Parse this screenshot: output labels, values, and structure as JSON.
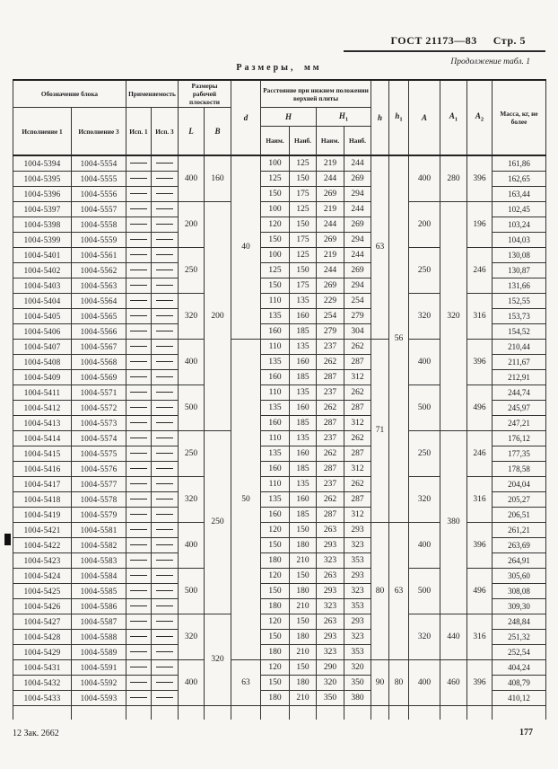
{
  "page": {
    "paper_color": "#f7f6f3",
    "ink_color": "#1d1d1d",
    "gost_label": "ГОСТ 21173—83",
    "page_label": "Стр. 5",
    "continuation": "Продолжение табл. 1",
    "size_title": "Размеры, мм",
    "footer_left": "12 Зак. 2662",
    "footer_page": "177"
  },
  "table": {
    "headers": {
      "designation_group": "Обозначение блока",
      "execution1": "Исполнение 1",
      "execution3": "Исполнение 3",
      "applicability_group": "Применяе­мость",
      "app1": "Исп. 1",
      "app3": "Исп. 3",
      "work_surface_group": "Размеры рабочей плоскости",
      "L": "L",
      "B": "B",
      "d": "d",
      "distance_group": "Расстояние при нижнем положении верхней плиты",
      "H": "H",
      "H1": {
        "base": "H",
        "sub": "1"
      },
      "min1": "Наим.",
      "max1": "Наиб.",
      "min2": "Наим.",
      "max2": "Наиб.",
      "h": "h",
      "h1": {
        "base": "h",
        "sub": "1"
      },
      "A": "A",
      "A1": {
        "base": "A",
        "sub": "1"
      },
      "A2": {
        "base": "A",
        "sub": "2"
      },
      "mass": "Масса, кг, не более"
    },
    "rows": [
      [
        "1004-5394",
        "1004-5554",
        "100",
        "125",
        "219",
        "244",
        "161,86"
      ],
      [
        "1004-5395",
        "1004-5555",
        "125",
        "150",
        "244",
        "269",
        "162,65"
      ],
      [
        "1004-5396",
        "1004-5556",
        "150",
        "175",
        "269",
        "294",
        "163,44"
      ],
      [
        "1004-5397",
        "1004-5557",
        "100",
        "125",
        "219",
        "244",
        "102,45"
      ],
      [
        "1004-5398",
        "1004-5558",
        "120",
        "150",
        "244",
        "269",
        "103,24"
      ],
      [
        "1004-5399",
        "1004-5559",
        "150",
        "175",
        "269",
        "294",
        "104,03"
      ],
      [
        "1004-5401",
        "1004-5561",
        "100",
        "125",
        "219",
        "244",
        "130,08"
      ],
      [
        "1004-5402",
        "1004-5562",
        "125",
        "150",
        "244",
        "269",
        "130,87"
      ],
      [
        "1004-5403",
        "1004-5563",
        "150",
        "175",
        "269",
        "294",
        "131,66"
      ],
      [
        "1004-5404",
        "1004-5564",
        "110",
        "135",
        "229",
        "254",
        "152,55"
      ],
      [
        "1004-5405",
        "1004-5565",
        "135",
        "160",
        "254",
        "279",
        "153,73"
      ],
      [
        "1004-5406",
        "1004-5566",
        "160",
        "185",
        "279",
        "304",
        "154,52"
      ],
      [
        "1004-5407",
        "1004-5567",
        "110",
        "135",
        "237",
        "262",
        "210,44"
      ],
      [
        "1004-5408",
        "1004-5568",
        "135",
        "160",
        "262",
        "287",
        "211,67"
      ],
      [
        "1004-5409",
        "1004-5569",
        "160",
        "185",
        "287",
        "312",
        "212,91"
      ],
      [
        "1004-5411",
        "1004-5571",
        "110",
        "135",
        "237",
        "262",
        "244,74"
      ],
      [
        "1004-5412",
        "1004-5572",
        "135",
        "160",
        "262",
        "287",
        "245,97"
      ],
      [
        "1004-5413",
        "1004-5573",
        "160",
        "185",
        "287",
        "312",
        "247,21"
      ],
      [
        "1004-5414",
        "1004-5574",
        "110",
        "135",
        "237",
        "262",
        "176,12"
      ],
      [
        "1004-5415",
        "1004-5575",
        "135",
        "160",
        "262",
        "287",
        "177,35"
      ],
      [
        "1004-5416",
        "1004-5576",
        "160",
        "185",
        "287",
        "312",
        "178,58"
      ],
      [
        "1004-5417",
        "1004-5577",
        "110",
        "135",
        "237",
        "262",
        "204,04"
      ],
      [
        "1004-5418",
        "1004-5578",
        "135",
        "160",
        "262",
        "287",
        "205,27"
      ],
      [
        "1004-5419",
        "1004-5579",
        "160",
        "185",
        "287",
        "312",
        "206,51"
      ],
      [
        "1004-5421",
        "1004-5581",
        "120",
        "150",
        "263",
        "293",
        "261,21"
      ],
      [
        "1004-5422",
        "1004-5582",
        "150",
        "180",
        "293",
        "323",
        "263,69"
      ],
      [
        "1004-5423",
        "1004-5583",
        "180",
        "210",
        "323",
        "353",
        "264,91"
      ],
      [
        "1004-5424",
        "1004-5584",
        "120",
        "150",
        "263",
        "293",
        "305,60"
      ],
      [
        "1004-5425",
        "1004-5585",
        "150",
        "180",
        "293",
        "323",
        "308,08"
      ],
      [
        "1004-5426",
        "1004-5586",
        "180",
        "210",
        "323",
        "353",
        "309,30"
      ],
      [
        "1004-5427",
        "1004-5587",
        "120",
        "150",
        "263",
        "293",
        "248,84"
      ],
      [
        "1004-5428",
        "1004-5588",
        "150",
        "180",
        "293",
        "323",
        "251,32"
      ],
      [
        "1004-5429",
        "1004-5589",
        "180",
        "210",
        "323",
        "353",
        "252,54"
      ],
      [
        "1004-5431",
        "1004-5591",
        "120",
        "150",
        "290",
        "320",
        "404,24"
      ],
      [
        "1004-5432",
        "1004-5592",
        "150",
        "180",
        "320",
        "350",
        "408,79"
      ],
      [
        "1004-5433",
        "1004-5593",
        "180",
        "210",
        "350",
        "380",
        "410,12"
      ]
    ],
    "span_columns": {
      "L": [
        {
          "start": 1,
          "span": 3,
          "value": "400"
        },
        {
          "start": 4,
          "span": 3,
          "value": "200"
        },
        {
          "start": 7,
          "span": 3,
          "value": "250"
        },
        {
          "start": 10,
          "span": 3,
          "value": "320"
        },
        {
          "start": 13,
          "span": 3,
          "value": "400"
        },
        {
          "start": 16,
          "span": 3,
          "value": "500"
        },
        {
          "start": 19,
          "span": 3,
          "value": "250"
        },
        {
          "start": 22,
          "span": 3,
          "value": "320"
        },
        {
          "start": 25,
          "span": 3,
          "value": "400"
        },
        {
          "start": 28,
          "span": 3,
          "value": "500"
        },
        {
          "start": 31,
          "span": 3,
          "value": "320"
        },
        {
          "start": 34,
          "span": 3,
          "value": "400"
        }
      ],
      "B": [
        {
          "start": 1,
          "span": 3,
          "value": "160"
        },
        {
          "start": 4,
          "span": 15,
          "value": "200"
        },
        {
          "start": 19,
          "span": 12,
          "value": "250"
        },
        {
          "start": 31,
          "span": 6,
          "value": "320"
        }
      ],
      "d": [
        {
          "start": 1,
          "span": 12,
          "value": "40"
        },
        {
          "start": 13,
          "span": 21,
          "value": "50"
        },
        {
          "start": 34,
          "span": 3,
          "value": "63"
        }
      ],
      "h": [
        {
          "start": 1,
          "span": 12,
          "value": "63"
        },
        {
          "start": 13,
          "span": 12,
          "value": "71"
        },
        {
          "start": 25,
          "span": 9,
          "value": "80"
        },
        {
          "start": 34,
          "span": 3,
          "value": "90"
        }
      ],
      "h1": [
        {
          "start": 1,
          "span": 24,
          "value": "56"
        },
        {
          "start": 25,
          "span": 9,
          "value": "63"
        },
        {
          "start": 34,
          "span": 3,
          "value": "80"
        }
      ],
      "A": [
        {
          "start": 1,
          "span": 3,
          "value": "400"
        },
        {
          "start": 4,
          "span": 3,
          "value": "200"
        },
        {
          "start": 7,
          "span": 3,
          "value": "250"
        },
        {
          "start": 10,
          "span": 3,
          "value": "320"
        },
        {
          "start": 13,
          "span": 3,
          "value": "400"
        },
        {
          "start": 16,
          "span": 3,
          "value": "500"
        },
        {
          "start": 19,
          "span": 3,
          "value": "250"
        },
        {
          "start": 22,
          "span": 3,
          "value": "320"
        },
        {
          "start": 25,
          "span": 3,
          "value": "400"
        },
        {
          "start": 28,
          "span": 3,
          "value": "500"
        },
        {
          "start": 31,
          "span": 3,
          "value": "320"
        },
        {
          "start": 34,
          "span": 3,
          "value": "400"
        }
      ],
      "A1": [
        {
          "start": 1,
          "span": 3,
          "value": "280"
        },
        {
          "start": 4,
          "span": 15,
          "value": "320"
        },
        {
          "start": 19,
          "span": 12,
          "value": "380"
        },
        {
          "start": 31,
          "span": 3,
          "value": "440"
        },
        {
          "start": 34,
          "span": 3,
          "value": "460"
        }
      ],
      "A2": [
        {
          "start": 1,
          "span": 3,
          "value": "396"
        },
        {
          "start": 4,
          "span": 3,
          "value": "196"
        },
        {
          "start": 7,
          "span": 3,
          "value": "246"
        },
        {
          "start": 10,
          "span": 3,
          "value": "316"
        },
        {
          "start": 13,
          "span": 3,
          "value": "396"
        },
        {
          "start": 16,
          "span": 3,
          "value": "496"
        },
        {
          "start": 19,
          "span": 3,
          "value": "246"
        },
        {
          "start": 22,
          "span": 3,
          "value": "316"
        },
        {
          "start": 25,
          "span": 3,
          "value": "396"
        },
        {
          "start": 28,
          "span": 3,
          "value": "496"
        },
        {
          "start": 31,
          "span": 3,
          "value": "316"
        },
        {
          "start": 34,
          "span": 3,
          "value": "396"
        }
      ]
    }
  }
}
